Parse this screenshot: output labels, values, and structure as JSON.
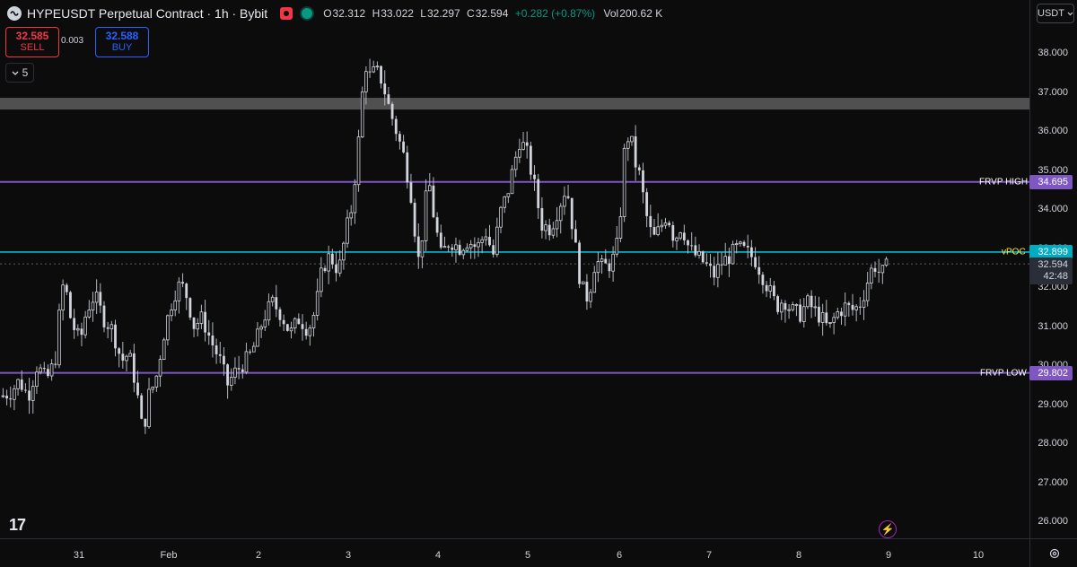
{
  "header": {
    "title": "HYPEUSDT Perpetual Contract · 1h · Bybit",
    "ohlc": {
      "o_label": "O",
      "o": "32.312",
      "h_label": "H",
      "h": "33.022",
      "l_label": "L",
      "l": "32.297",
      "c_label": "C",
      "c": "32.594"
    },
    "change": "+0.282 (+0.87%)",
    "vol_label": "Vol",
    "vol": "200.62 K"
  },
  "trade": {
    "sell_price": "32.585",
    "sell_label": "SELL",
    "spread": "0.003",
    "buy_price": "32.588",
    "buy_label": "BUY"
  },
  "indicator_toggle": {
    "count": "5"
  },
  "price_axis": {
    "currency": "USDT",
    "ticks": [
      "38.000",
      "37.000",
      "36.000",
      "35.000",
      "34.000",
      "33.000",
      "32.000",
      "31.000",
      "30.000",
      "29.000",
      "28.000",
      "27.000",
      "26.000"
    ],
    "last_price": "32.594",
    "countdown": "42:48"
  },
  "time_axis": {
    "ticks": [
      "31",
      "Feb",
      "2",
      "3",
      "4",
      "5",
      "6",
      "7",
      "8",
      "9",
      "10"
    ]
  },
  "levels": {
    "frvp_high": {
      "label": "FRVP HIGH",
      "value": "34.695"
    },
    "vpoc": {
      "label": "vPOC",
      "value": "32.899"
    },
    "frvp_low": {
      "label": "FRVP LOW",
      "value": "29.802"
    }
  },
  "zone": {
    "from": 36.55,
    "to": 36.85
  },
  "logo": "17",
  "colors": {
    "frvp": "#7e57c2",
    "vpoc": "#00bcd4",
    "up": "#d1d4dc",
    "down": "#d1d4dc",
    "sell": "#f23645",
    "buy": "#2962ff",
    "vpoc_text": "#ffeb3b"
  },
  "chart_data": {
    "type": "candlestick",
    "y_range": [
      25.6,
      38.9
    ],
    "path_keypoints": [
      [
        0,
        29.2
      ],
      [
        10,
        29.3
      ],
      [
        20,
        29.6
      ],
      [
        30,
        29.2
      ],
      [
        40,
        30.0
      ],
      [
        50,
        29.6
      ],
      [
        60,
        30.1
      ],
      [
        66,
        31.6
      ],
      [
        70,
        32.2
      ],
      [
        78,
        31.1
      ],
      [
        88,
        30.6
      ],
      [
        95,
        31.4
      ],
      [
        104,
        31.8
      ],
      [
        114,
        31.2
      ],
      [
        124,
        30.9
      ],
      [
        134,
        30.1
      ],
      [
        142,
        30.3
      ],
      [
        150,
        29.5
      ],
      [
        158,
        28.2
      ],
      [
        164,
        29.2
      ],
      [
        172,
        29.6
      ],
      [
        182,
        30.9
      ],
      [
        192,
        31.8
      ],
      [
        200,
        32.1
      ],
      [
        208,
        31.7
      ],
      [
        214,
        31.0
      ],
      [
        224,
        31.2
      ],
      [
        234,
        30.6
      ],
      [
        244,
        30.1
      ],
      [
        252,
        29.5
      ],
      [
        260,
        29.8
      ],
      [
        268,
        30.0
      ],
      [
        276,
        30.2
      ],
      [
        284,
        30.6
      ],
      [
        292,
        31.2
      ],
      [
        302,
        31.6
      ],
      [
        312,
        31.3
      ],
      [
        322,
        30.8
      ],
      [
        332,
        31.2
      ],
      [
        342,
        30.9
      ],
      [
        350,
        31.4
      ],
      [
        358,
        32.5
      ],
      [
        366,
        32.8
      ],
      [
        376,
        32.4
      ],
      [
        384,
        33.4
      ],
      [
        390,
        34.0
      ],
      [
        396,
        35.2
      ],
      [
        400,
        36.2
      ],
      [
        404,
        37.5
      ],
      [
        408,
        37.8
      ],
      [
        412,
        37.2
      ],
      [
        416,
        37.6
      ],
      [
        424,
        37.3
      ],
      [
        432,
        36.6
      ],
      [
        440,
        36.0
      ],
      [
        448,
        35.4
      ],
      [
        456,
        34.5
      ],
      [
        462,
        33.2
      ],
      [
        466,
        32.5
      ],
      [
        470,
        33.6
      ],
      [
        476,
        34.8
      ],
      [
        482,
        33.8
      ],
      [
        490,
        32.8
      ],
      [
        500,
        33.2
      ],
      [
        510,
        33.0
      ],
      [
        520,
        33.2
      ],
      [
        530,
        33.0
      ],
      [
        540,
        33.4
      ],
      [
        548,
        32.8
      ],
      [
        556,
        33.9
      ],
      [
        564,
        34.4
      ],
      [
        572,
        35.2
      ],
      [
        578,
        35.8
      ],
      [
        586,
        35.4
      ],
      [
        594,
        34.6
      ],
      [
        602,
        33.6
      ],
      [
        612,
        33.5
      ],
      [
        622,
        34.1
      ],
      [
        630,
        34.6
      ],
      [
        638,
        33.3
      ],
      [
        646,
        32.0
      ],
      [
        654,
        31.7
      ],
      [
        662,
        32.7
      ],
      [
        670,
        32.5
      ],
      [
        680,
        32.6
      ],
      [
        688,
        33.2
      ],
      [
        694,
        35.4
      ],
      [
        700,
        36.0
      ],
      [
        706,
        35.2
      ],
      [
        712,
        34.8
      ],
      [
        718,
        33.9
      ],
      [
        726,
        33.2
      ],
      [
        734,
        33.5
      ],
      [
        742,
        33.9
      ],
      [
        750,
        33.2
      ],
      [
        758,
        33.6
      ],
      [
        766,
        33.0
      ],
      [
        774,
        32.8
      ],
      [
        784,
        32.6
      ],
      [
        794,
        32.3
      ],
      [
        802,
        32.6
      ],
      [
        812,
        32.8
      ],
      [
        820,
        33.0
      ],
      [
        830,
        32.9
      ],
      [
        840,
        32.7
      ],
      [
        848,
        32.3
      ],
      [
        856,
        31.9
      ],
      [
        864,
        31.5
      ],
      [
        872,
        31.7
      ],
      [
        880,
        31.4
      ],
      [
        890,
        31.3
      ],
      [
        898,
        31.6
      ],
      [
        906,
        31.4
      ],
      [
        914,
        31.2
      ],
      [
        922,
        30.9
      ],
      [
        930,
        31.3
      ],
      [
        940,
        31.5
      ],
      [
        950,
        31.4
      ],
      [
        958,
        31.6
      ],
      [
        966,
        32.2
      ],
      [
        972,
        32.6
      ],
      [
        980,
        32.3
      ],
      [
        986,
        32.5
      ],
      [
        990,
        32.59
      ]
    ],
    "last_close": 32.594
  }
}
